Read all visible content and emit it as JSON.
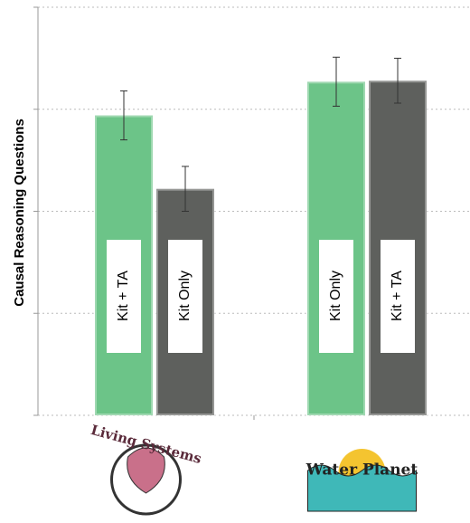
{
  "chart_data": {
    "type": "bar",
    "y_label": "Causal Reasoning Questions",
    "groups": [
      {
        "name": "Living Systems",
        "bars": [
          {
            "label": "Kit + TA",
            "color": "#6cc488",
            "value": 2.94,
            "error": 0.24
          },
          {
            "label": "Kit Only",
            "color": "#5e605d",
            "value": 2.22,
            "error": 0.22
          }
        ]
      },
      {
        "name": "Water Planet",
        "bars": [
          {
            "label": "Kit Only",
            "color": "#6cc488",
            "value": 3.27,
            "error": 0.24
          },
          {
            "label": "Kit + TA",
            "color": "#5e605d",
            "value": 3.28,
            "error": 0.22
          }
        ]
      }
    ],
    "ylim": [
      0,
      4
    ],
    "yticks": [
      0,
      1,
      2,
      3,
      4
    ],
    "grid": true
  }
}
